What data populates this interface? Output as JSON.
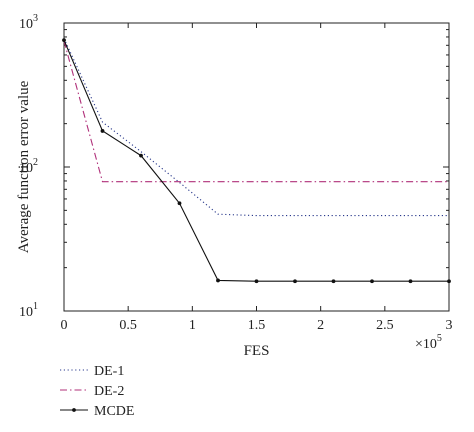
{
  "chart_data": {
    "type": "line",
    "title": "",
    "xlabel": "FES",
    "ylabel": "Average function error value",
    "x_multiplier_label": {
      "base": "×10",
      "exp": "5"
    },
    "xlim": [
      0,
      3
    ],
    "ylim": [
      10,
      1000
    ],
    "yscale": "log",
    "grid": false,
    "legend_position": "bottom-left, below plot",
    "x_ticks": [
      "0",
      "0.5",
      "1",
      "1.5",
      "2",
      "2.5",
      "3"
    ],
    "y_ticks": [
      {
        "value": 10,
        "base": "10",
        "exp": "1"
      },
      {
        "value": 100,
        "base": "10",
        "exp": "2"
      },
      {
        "value": 1000,
        "base": "10",
        "exp": "3"
      }
    ],
    "series": [
      {
        "name": "DE-1",
        "color": "#2a3a8c",
        "style": "dotted",
        "x": [
          0,
          0.3,
          0.6,
          0.9,
          1.2,
          1.5,
          1.8,
          2.1,
          2.4,
          2.7,
          3.0
        ],
        "y": [
          780,
          205,
          128,
          78,
          47,
          46,
          46,
          46,
          46,
          46,
          46
        ]
      },
      {
        "name": "DE-2",
        "color": "#b0307a",
        "style": "dashdot",
        "x": [
          0,
          0.3,
          0.6,
          0.9,
          1.2,
          1.5,
          1.8,
          2.1,
          2.4,
          2.7,
          3.0
        ],
        "y": [
          750,
          79,
          79,
          79,
          79,
          79,
          79,
          79,
          79,
          79,
          79
        ]
      },
      {
        "name": "MCDE",
        "color": "#111111",
        "style": "solid-marker",
        "x": [
          0,
          0.3,
          0.6,
          0.9,
          1.2,
          1.5,
          1.8,
          2.1,
          2.4,
          2.7,
          3.0
        ],
        "y": [
          760,
          178,
          120,
          56,
          16.3,
          16.1,
          16.1,
          16.1,
          16.1,
          16.1,
          16.1
        ]
      }
    ]
  }
}
